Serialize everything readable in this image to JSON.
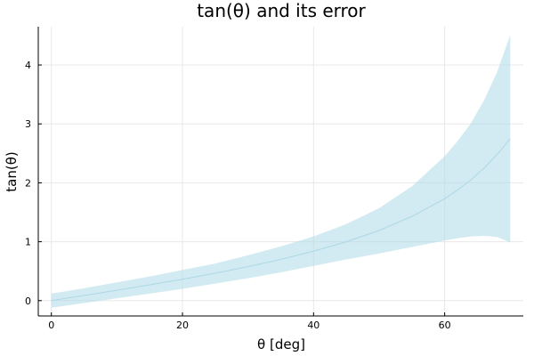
{
  "chart_data": {
    "type": "area",
    "title": "tan(θ) and its error",
    "xlabel": "θ [deg]",
    "ylabel": "tan(θ)",
    "xlim": [
      -2,
      72
    ],
    "ylim": [
      -0.26,
      4.65
    ],
    "xticks": [
      0,
      20,
      40,
      60
    ],
    "yticks": [
      0,
      1,
      2,
      3,
      4
    ],
    "grid": true,
    "legend": "none",
    "series": [
      {
        "x": [
          0,
          5,
          10,
          15,
          20,
          25,
          30,
          35,
          40,
          45,
          50,
          55,
          60,
          62,
          64,
          66,
          68,
          70
        ],
        "values": [
          0,
          0.087,
          0.176,
          0.268,
          0.364,
          0.466,
          0.577,
          0.7,
          0.839,
          1.0,
          1.19,
          1.43,
          1.73,
          1.88,
          2.05,
          2.25,
          2.48,
          2.75
        ],
        "lower": [
          -0.12,
          -0.04,
          0.04,
          0.12,
          0.2,
          0.29,
          0.38,
          0.48,
          0.59,
          0.7,
          0.8,
          0.91,
          1.02,
          1.06,
          1.09,
          1.1,
          1.08,
          0.99
        ],
        "upper": [
          0.12,
          0.21,
          0.31,
          0.41,
          0.52,
          0.63,
          0.77,
          0.92,
          1.09,
          1.3,
          1.57,
          1.94,
          2.45,
          2.71,
          3.01,
          3.4,
          3.88,
          4.51
        ],
        "color": "#add8e6"
      }
    ]
  }
}
